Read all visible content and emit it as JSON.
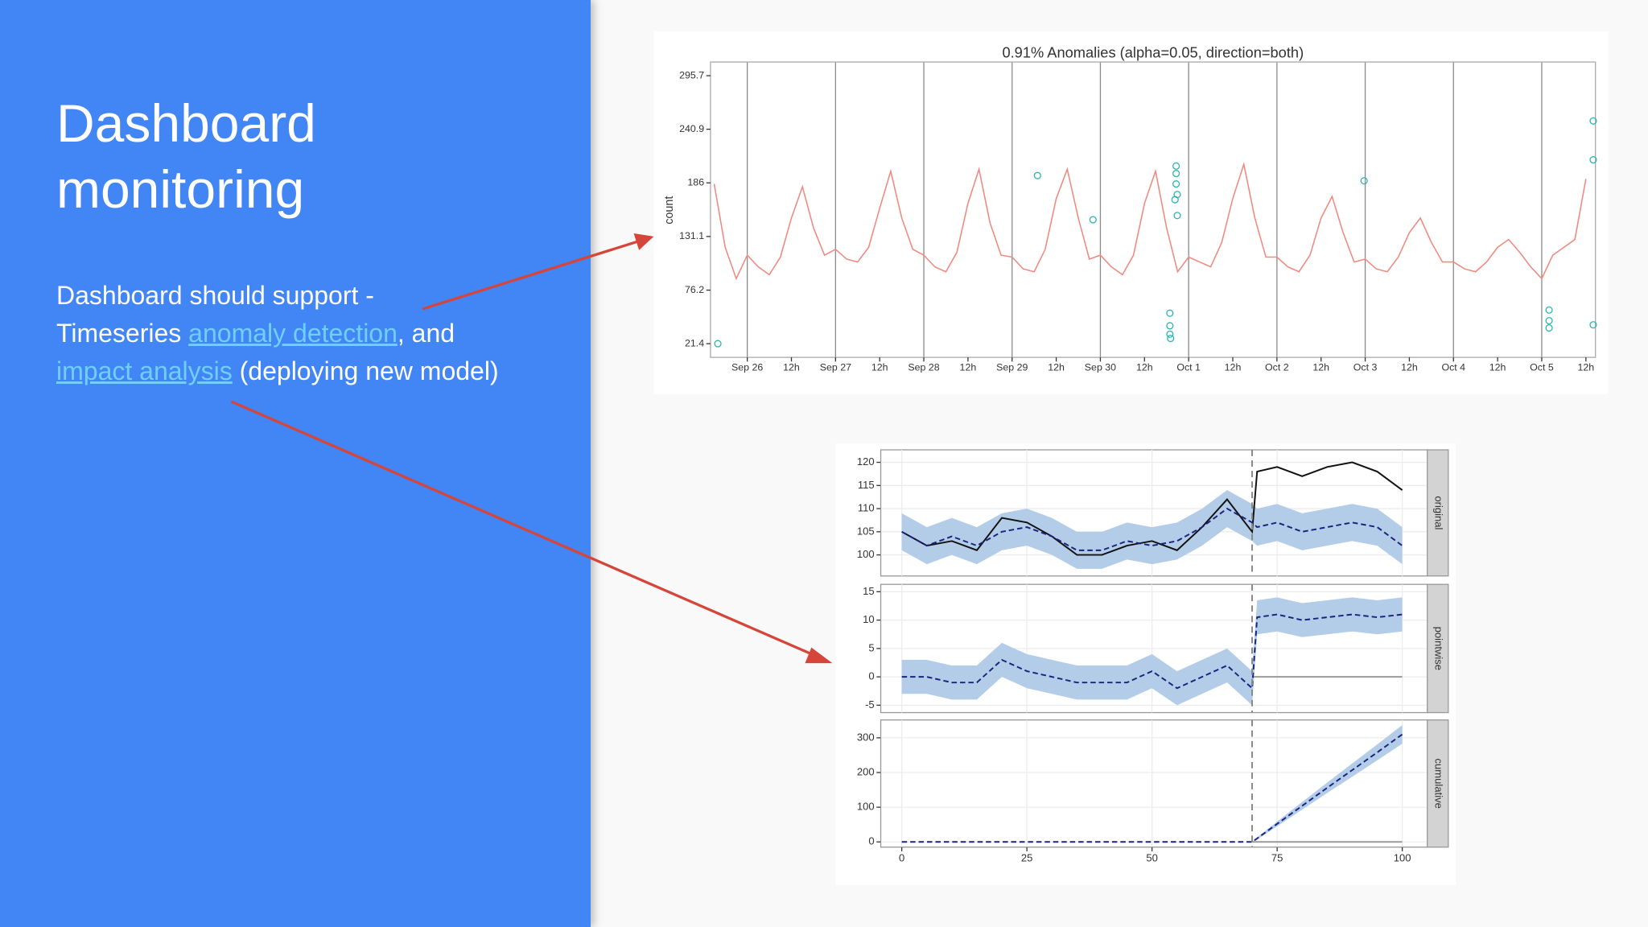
{
  "slide": {
    "title": "Dashboard monitoring",
    "body": {
      "intro": "Dashboard should support -",
      "prefix": "Timeseries",
      "link1": "anomaly detection",
      "middle": ", and",
      "link2": "impact analysis",
      "suffix": "(deploying new model)"
    }
  },
  "chart_data": [
    {
      "type": "line",
      "title": "0.91% Anomalies (alpha=0.05, direction=both)",
      "ylabel": "count",
      "x": [
        -9,
        -6,
        -3,
        0,
        3,
        6,
        9,
        12,
        15,
        18,
        21,
        24,
        27,
        30,
        33,
        36,
        39,
        42,
        45,
        48,
        51,
        54,
        57,
        60,
        63,
        66,
        69,
        72,
        75,
        78,
        81,
        84,
        87,
        90,
        93,
        96,
        99,
        102,
        105,
        108,
        111,
        114,
        117,
        120,
        123,
        126,
        129,
        132,
        135,
        138,
        141,
        144,
        147,
        150,
        153,
        156,
        159,
        162,
        165,
        168,
        171,
        174,
        177,
        180,
        183,
        186,
        189,
        192,
        195,
        198,
        201,
        204,
        207,
        210,
        213,
        216,
        219,
        222,
        225,
        228
      ],
      "values": [
        185,
        120,
        88,
        112,
        100,
        92,
        110,
        150,
        182,
        140,
        112,
        118,
        108,
        105,
        120,
        160,
        198,
        150,
        118,
        112,
        100,
        95,
        115,
        165,
        200,
        145,
        112,
        110,
        98,
        95,
        118,
        170,
        200,
        150,
        108,
        112,
        100,
        92,
        112,
        165,
        198,
        140,
        95,
        110,
        105,
        100,
        125,
        170,
        205,
        150,
        110,
        110,
        100,
        95,
        112,
        150,
        172,
        135,
        105,
        108,
        98,
        95,
        110,
        135,
        150,
        125,
        105,
        105,
        98,
        95,
        105,
        120,
        128,
        115,
        100,
        88,
        112,
        120,
        128,
        190
      ],
      "color": "#f08a80",
      "anomalies": {
        "x": [
          -8,
          78.9,
          94,
          114.9,
          114.9,
          114.9,
          115.1,
          116.6,
          116.6,
          116.6,
          116.9,
          116.9,
          116.3,
          167.7,
          218,
          218,
          218,
          230,
          230,
          230
        ],
        "values": [
          21.4,
          193.5,
          148.3,
          52.6,
          39.7,
          31.1,
          26.8,
          203.2,
          195.6,
          184.9,
          174.1,
          152.6,
          168.8,
          188.1,
          55.8,
          44.9,
          37.5,
          249.4,
          209.6,
          40.7
        ],
        "color": "#2bb5b0"
      },
      "xlim": [
        -10,
        230.6
      ],
      "ylim": [
        7.4,
        309.7
      ],
      "yticks": [
        21.4,
        76.2,
        131.1,
        186,
        240.9,
        295.7
      ],
      "xticks": [
        {
          "value": 0,
          "label": "Sep 26"
        },
        {
          "value": 12,
          "label": "12h"
        },
        {
          "value": 24,
          "label": "Sep 27"
        },
        {
          "value": 36,
          "label": "12h"
        },
        {
          "value": 48,
          "label": "Sep 28"
        },
        {
          "value": 60,
          "label": "12h"
        },
        {
          "value": 72,
          "label": "Sep 29"
        },
        {
          "value": 84,
          "label": "12h"
        },
        {
          "value": 96,
          "label": "Sep 30"
        },
        {
          "value": 108,
          "label": "12h"
        },
        {
          "value": 120,
          "label": "Oct  1"
        },
        {
          "value": 132,
          "label": "12h"
        },
        {
          "value": 144,
          "label": "Oct  2"
        },
        {
          "value": 156,
          "label": "12h"
        },
        {
          "value": 168,
          "label": "Oct  3"
        },
        {
          "value": 180,
          "label": "12h"
        },
        {
          "value": 192,
          "label": "Oct  4"
        },
        {
          "value": 204,
          "label": "12h"
        },
        {
          "value": 216,
          "label": "Oct  5"
        },
        {
          "value": 228,
          "label": "12h"
        }
      ],
      "xgrid": [
        0,
        24,
        48,
        72,
        96,
        120,
        144,
        168,
        192,
        216
      ]
    },
    {
      "type": "facet-line",
      "xlim": [
        -4.2,
        105
      ],
      "xticks": [
        0,
        25,
        50,
        75,
        100
      ],
      "intervention": 70,
      "x": [
        0,
        5,
        10,
        15,
        20,
        25,
        30,
        35,
        40,
        45,
        50,
        55,
        60,
        65,
        70,
        71,
        75,
        80,
        85,
        90,
        95,
        100
      ],
      "band_color": "#b3cde8",
      "predicted_color": "#1a237e",
      "actual_color": "#111111",
      "panels": [
        {
          "label": "original",
          "ylim": [
            95.45,
            122.7
          ],
          "yticks": [
            100,
            105,
            110,
            115,
            120
          ],
          "actual": [
            105,
            102,
            103,
            101,
            108,
            107,
            104,
            100,
            100,
            102,
            103,
            101,
            106,
            112,
            105,
            118,
            119,
            117,
            119,
            120,
            118,
            114
          ],
          "predicted": [
            105,
            102,
            104,
            102,
            105,
            106,
            104,
            101,
            101,
            103,
            102,
            103,
            106,
            110,
            107,
            106,
            107,
            105,
            106,
            107,
            106,
            102
          ],
          "lower": [
            101,
            98,
            100,
            98,
            101,
            102,
            100,
            97,
            97,
            99,
            98,
            99,
            102,
            106,
            103,
            102,
            103,
            101,
            102,
            103,
            102,
            98
          ],
          "upper": [
            109,
            106,
            108,
            106,
            109,
            110,
            108,
            105,
            105,
            107,
            106,
            107,
            110,
            114,
            111,
            110,
            111,
            109,
            110,
            111,
            110,
            106
          ]
        },
        {
          "label": "pointwise",
          "ylim": [
            -6.3,
            16.3
          ],
          "yticks": [
            -5,
            0,
            5,
            10,
            15
          ],
          "predicted": [
            0,
            0,
            -1,
            -1,
            3,
            1,
            0,
            -1,
            -1,
            -1,
            1,
            -2,
            0,
            2,
            -2,
            10.5,
            11,
            10,
            10.5,
            11,
            10.5,
            11
          ],
          "lower": [
            -3,
            -3,
            -4,
            -4,
            0,
            -2,
            -3,
            -4,
            -4,
            -4,
            -2,
            -5,
            -3,
            -1,
            -5,
            7.5,
            8,
            7,
            7.5,
            8,
            7.5,
            8
          ],
          "upper": [
            3,
            3,
            2,
            2,
            6,
            4,
            3,
            2,
            2,
            2,
            4,
            1,
            3,
            5,
            1,
            13.5,
            14,
            13,
            13.5,
            14,
            13.5,
            14
          ]
        },
        {
          "label": "cumulative",
          "ylim": [
            -15,
            351.5
          ],
          "yticks": [
            0,
            100,
            200,
            300
          ],
          "predicted": [
            0,
            0,
            0,
            0,
            0,
            0,
            0,
            0,
            0,
            0,
            0,
            0,
            0,
            0,
            0,
            10,
            52,
            104,
            156,
            207,
            258,
            310
          ],
          "lower": [
            0,
            0,
            0,
            0,
            0,
            0,
            0,
            0,
            0,
            0,
            0,
            0,
            0,
            0,
            0,
            7,
            45,
            93,
            141,
            188,
            235,
            283
          ],
          "upper": [
            0,
            0,
            0,
            0,
            0,
            0,
            0,
            0,
            0,
            0,
            0,
            0,
            0,
            0,
            0,
            13,
            59,
            115,
            171,
            226,
            281,
            337
          ]
        }
      ]
    }
  ]
}
